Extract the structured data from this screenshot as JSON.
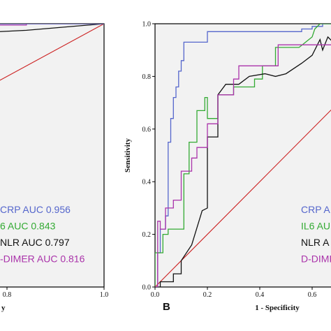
{
  "colors": {
    "plot_bg": "#f2f2f2",
    "diagonal": "#cc2020",
    "crp": "#5566cc",
    "il6": "#33aa33",
    "nlr": "#111111",
    "ddimer": "#aa33aa"
  },
  "chart_data": [
    {
      "panel": "A",
      "type": "line",
      "xlabel": "y",
      "ylabel": "",
      "xlim": [
        0.0,
        1.0
      ],
      "ylim": [
        0.0,
        1.0
      ],
      "x_ticks": [
        "6",
        "0.8",
        "1.0"
      ],
      "y_ticks": [],
      "grid": false,
      "legend": "bottom",
      "legend_entries": [
        {
          "key": "crp",
          "text": "CRP AUC 0.956"
        },
        {
          "key": "il6",
          "text": "6 AUC 0.843"
        },
        {
          "key": "nlr",
          "text": "NLR AUC 0.797"
        },
        {
          "key": "ddimer",
          "text": "-DIMER AUC 0.816"
        }
      ],
      "series": [
        {
          "key": "diagonal",
          "x": [
            0.0,
            1.0
          ],
          "y": [
            0.0,
            1.0
          ]
        },
        {
          "key": "nlr",
          "x": [
            0.42,
            0.62,
            0.84,
            1.0
          ],
          "y": [
            0.955,
            0.955,
            0.975,
            1.0
          ]
        },
        {
          "key": "ddimer",
          "x": [
            0.42,
            0.46,
            0.5,
            0.56,
            0.56,
            0.84,
            0.84,
            1.0
          ],
          "y": [
            0.965,
            0.965,
            0.985,
            0.985,
            0.995,
            0.995,
            1.0,
            1.0
          ]
        },
        {
          "key": "crp",
          "x": [
            0.42,
            0.58,
            0.58,
            1.0
          ],
          "y": [
            0.975,
            0.975,
            1.0,
            1.0
          ]
        }
      ]
    },
    {
      "panel": "B",
      "type": "line",
      "xlabel": "1 - Specificity",
      "ylabel": "Sensitivity",
      "xlim": [
        0.0,
        1.0
      ],
      "ylim": [
        0.0,
        1.0
      ],
      "x_ticks": [
        "0.0",
        "0.2",
        "0.4",
        "0.6"
      ],
      "y_ticks": [
        "0.0",
        "0.2",
        "0.4",
        "0.6",
        "0.8",
        "1.0"
      ],
      "grid": false,
      "legend": "bottom-right",
      "legend_entries": [
        {
          "key": "crp",
          "text": "CRP A"
        },
        {
          "key": "il6",
          "text": "IL6 AU"
        },
        {
          "key": "nlr",
          "text": "NLR A"
        },
        {
          "key": "ddimer",
          "text": "D-DIMI"
        }
      ],
      "series": [
        {
          "key": "diagonal",
          "x": [
            0.0,
            1.0
          ],
          "y": [
            0.0,
            1.0
          ]
        },
        {
          "key": "crp",
          "x": [
            0.0,
            0.01,
            0.01,
            0.02,
            0.02,
            0.04,
            0.04,
            0.05,
            0.05,
            0.06,
            0.06,
            0.07,
            0.07,
            0.08,
            0.08,
            0.09,
            0.09,
            0.1,
            0.1,
            0.11,
            0.11,
            0.2,
            0.2,
            0.56,
            0.56,
            0.6,
            0.6,
            0.64,
            0.64,
            0.7
          ],
          "y": [
            0.0,
            0.0,
            0.13,
            0.13,
            0.22,
            0.22,
            0.27,
            0.27,
            0.55,
            0.55,
            0.64,
            0.64,
            0.72,
            0.72,
            0.76,
            0.76,
            0.82,
            0.82,
            0.86,
            0.86,
            0.93,
            0.93,
            0.97,
            0.97,
            0.98,
            0.98,
            0.99,
            0.99,
            1.0,
            1.0
          ]
        },
        {
          "key": "il6",
          "x": [
            0.0,
            0.0,
            0.03,
            0.03,
            0.05,
            0.05,
            0.11,
            0.11,
            0.13,
            0.13,
            0.16,
            0.16,
            0.19,
            0.19,
            0.2,
            0.2,
            0.24,
            0.24,
            0.3,
            0.3,
            0.38,
            0.38,
            0.41,
            0.41,
            0.46,
            0.46,
            0.55,
            0.6,
            0.61,
            0.63,
            0.68
          ],
          "y": [
            0.0,
            0.13,
            0.13,
            0.2,
            0.2,
            0.22,
            0.22,
            0.43,
            0.43,
            0.55,
            0.55,
            0.67,
            0.67,
            0.72,
            0.72,
            0.64,
            0.64,
            0.73,
            0.73,
            0.76,
            0.76,
            0.79,
            0.79,
            0.84,
            0.84,
            0.91,
            0.91,
            0.95,
            0.98,
            1.0,
            1.0
          ]
        },
        {
          "key": "nlr",
          "x": [
            0.0,
            0.02,
            0.02,
            0.07,
            0.07,
            0.1,
            0.1,
            0.14,
            0.18,
            0.2,
            0.2,
            0.24,
            0.24,
            0.27,
            0.32,
            0.36,
            0.42,
            0.46,
            0.5,
            0.56,
            0.6,
            0.63,
            0.64,
            0.66,
            0.68
          ],
          "y": [
            0.0,
            0.0,
            0.02,
            0.02,
            0.05,
            0.05,
            0.1,
            0.16,
            0.29,
            0.3,
            0.57,
            0.57,
            0.73,
            0.77,
            0.77,
            0.8,
            0.81,
            0.8,
            0.81,
            0.85,
            0.88,
            0.94,
            0.9,
            0.95,
            0.93
          ]
        },
        {
          "key": "ddimer",
          "x": [
            0.0,
            0.01,
            0.01,
            0.02,
            0.02,
            0.04,
            0.04,
            0.07,
            0.07,
            0.1,
            0.1,
            0.14,
            0.14,
            0.16,
            0.16,
            0.2,
            0.2,
            0.24,
            0.24,
            0.3,
            0.3,
            0.32,
            0.32,
            0.47,
            0.47,
            0.68
          ],
          "y": [
            0.0,
            0.0,
            0.25,
            0.25,
            0.22,
            0.22,
            0.3,
            0.3,
            0.33,
            0.33,
            0.44,
            0.44,
            0.49,
            0.49,
            0.53,
            0.53,
            0.62,
            0.62,
            0.73,
            0.73,
            0.79,
            0.79,
            0.84,
            0.84,
            0.92,
            0.92
          ]
        }
      ]
    }
  ]
}
